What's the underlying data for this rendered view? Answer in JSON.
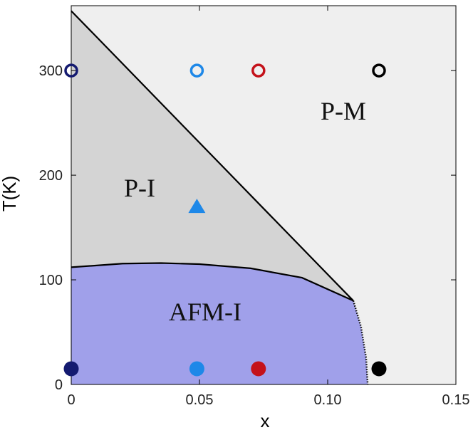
{
  "chart_data": {
    "type": "scatter",
    "xlabel": "x",
    "ylabel": "T(K)",
    "xlim": [
      0,
      0.15
    ],
    "ylim": [
      0,
      362
    ],
    "xticks": [
      0,
      0.05,
      {
        "value": 0.1,
        "label": "0.10"
      },
      0.15
    ],
    "yticks": [
      0,
      100,
      200,
      300
    ],
    "annotations": [
      "P-M",
      "P-I",
      "AFM-I"
    ],
    "region_colors": [
      "#efefef",
      "#d4d4d4",
      "#a0a0ea"
    ],
    "boundaries": [
      {
        "style": "solid",
        "x": [
          0,
          0.11
        ],
        "values": [
          357,
          80
        ]
      },
      {
        "style": "solid",
        "x": [
          0,
          0.02,
          0.035,
          0.05,
          0.07,
          0.09,
          0.11
        ],
        "values": [
          112,
          115.5,
          116,
          115,
          111,
          102,
          80
        ]
      },
      {
        "style": "dotted",
        "x": [
          0.11,
          0.113,
          0.115,
          0.1156
        ],
        "values": [
          80,
          55,
          25,
          0
        ]
      }
    ],
    "series": [
      {
        "marker": "open-circle",
        "x": [
          0,
          0.049,
          0.073,
          0.12
        ],
        "values": [
          300,
          300,
          300,
          300
        ],
        "colors": [
          "#141a70",
          "#1e88e8",
          "#c4121a",
          "#000000"
        ]
      },
      {
        "marker": "circle",
        "x": [
          0,
          0.049,
          0.073,
          0.12
        ],
        "values": [
          15,
          15,
          15,
          15
        ],
        "colors": [
          "#141a70",
          "#1e88e8",
          "#c4121a",
          "#000000"
        ]
      },
      {
        "marker": "triangle",
        "x": [
          0.049
        ],
        "values": [
          170
        ],
        "colors": [
          "#1e88e8"
        ]
      }
    ]
  }
}
